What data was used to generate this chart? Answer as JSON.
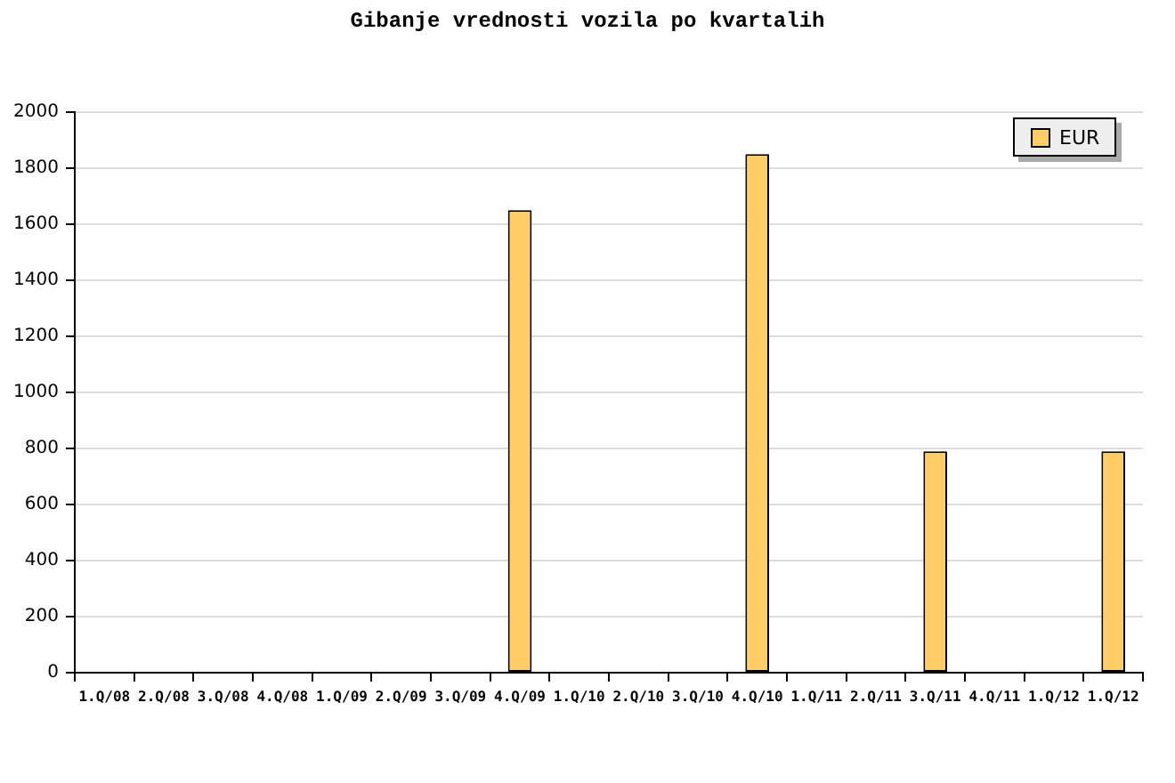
{
  "chart_data": {
    "type": "bar",
    "title": "Gibanje vrednosti vozila po kvartalih",
    "categories": [
      "1.Q/08",
      "2.Q/08",
      "3.Q/08",
      "4.Q/08",
      "1.Q/09",
      "2.Q/09",
      "3.Q/09",
      "4.Q/09",
      "1.Q/10",
      "2.Q/10",
      "3.Q/10",
      "4.Q/10",
      "1.Q/11",
      "2.Q/11",
      "3.Q/11",
      "4.Q/11",
      "1.Q/12",
      "1.Q/12"
    ],
    "series": [
      {
        "name": "EUR",
        "color": "#ffcc66",
        "values": [
          null,
          null,
          null,
          null,
          null,
          null,
          null,
          1650,
          null,
          null,
          null,
          1850,
          null,
          null,
          790,
          null,
          null,
          790
        ]
      }
    ],
    "ylim": [
      0,
      2000
    ],
    "yticks": [
      0,
      200,
      400,
      600,
      800,
      1000,
      1200,
      1400,
      1600,
      1800,
      2000
    ],
    "grid": "y",
    "legend": "top right"
  }
}
